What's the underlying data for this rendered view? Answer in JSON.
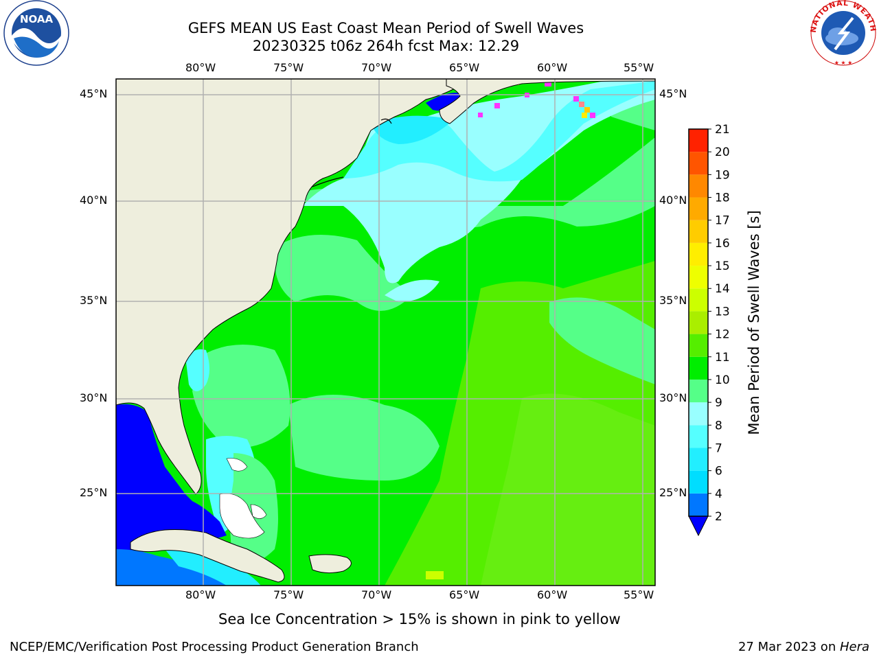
{
  "title": {
    "line1": "GEFS MEAN US East Coast Mean Period of Swell Waves",
    "line2": "20230325 t06z 264h fcst   Max: 12.29"
  },
  "map": {
    "lon_labels": [
      "80°W",
      "75°W",
      "70°W",
      "65°W",
      "60°W",
      "55°W"
    ],
    "lat_labels": [
      "45°N",
      "40°N",
      "35°N",
      "30°N",
      "25°N"
    ],
    "extent": {
      "lon_min": -85,
      "lon_max": -54.2,
      "lat_min": 20.5,
      "lat_max": 45.8
    },
    "colors": {
      "land": "#eeeedd",
      "grid": "#b0b0b0"
    }
  },
  "colorbar": {
    "label": "Mean Period of Swell Waves [s]",
    "ticks": [
      "2",
      "4",
      "6",
      "7",
      "8",
      "9",
      "10",
      "11",
      "12",
      "13",
      "14",
      "15",
      "16",
      "17",
      "18",
      "19",
      "20",
      "21"
    ],
    "colors": [
      "#0077ff",
      "#00ddff",
      "#22eeff",
      "#55ffff",
      "#99ffff",
      "#55ff88",
      "#00ee00",
      "#55ee00",
      "#aaee00",
      "#ccff00",
      "#eeff00",
      "#ffee00",
      "#ffcc00",
      "#ffaa00",
      "#ff8800",
      "#ff5500",
      "#ff2200"
    ],
    "under_color": "#0000ff"
  },
  "sea_ice_note": "Sea Ice Concentration > 15% is shown in pink to yellow",
  "footer": {
    "left": "NCEP/EMC/Verification Post Processing Product Generation Branch",
    "date": "27 Mar 2023 on ",
    "machine": "Hera"
  },
  "logos": {
    "noaa": "NOAA",
    "nws_ring": "NATIONAL WEATHER SERVICE"
  }
}
